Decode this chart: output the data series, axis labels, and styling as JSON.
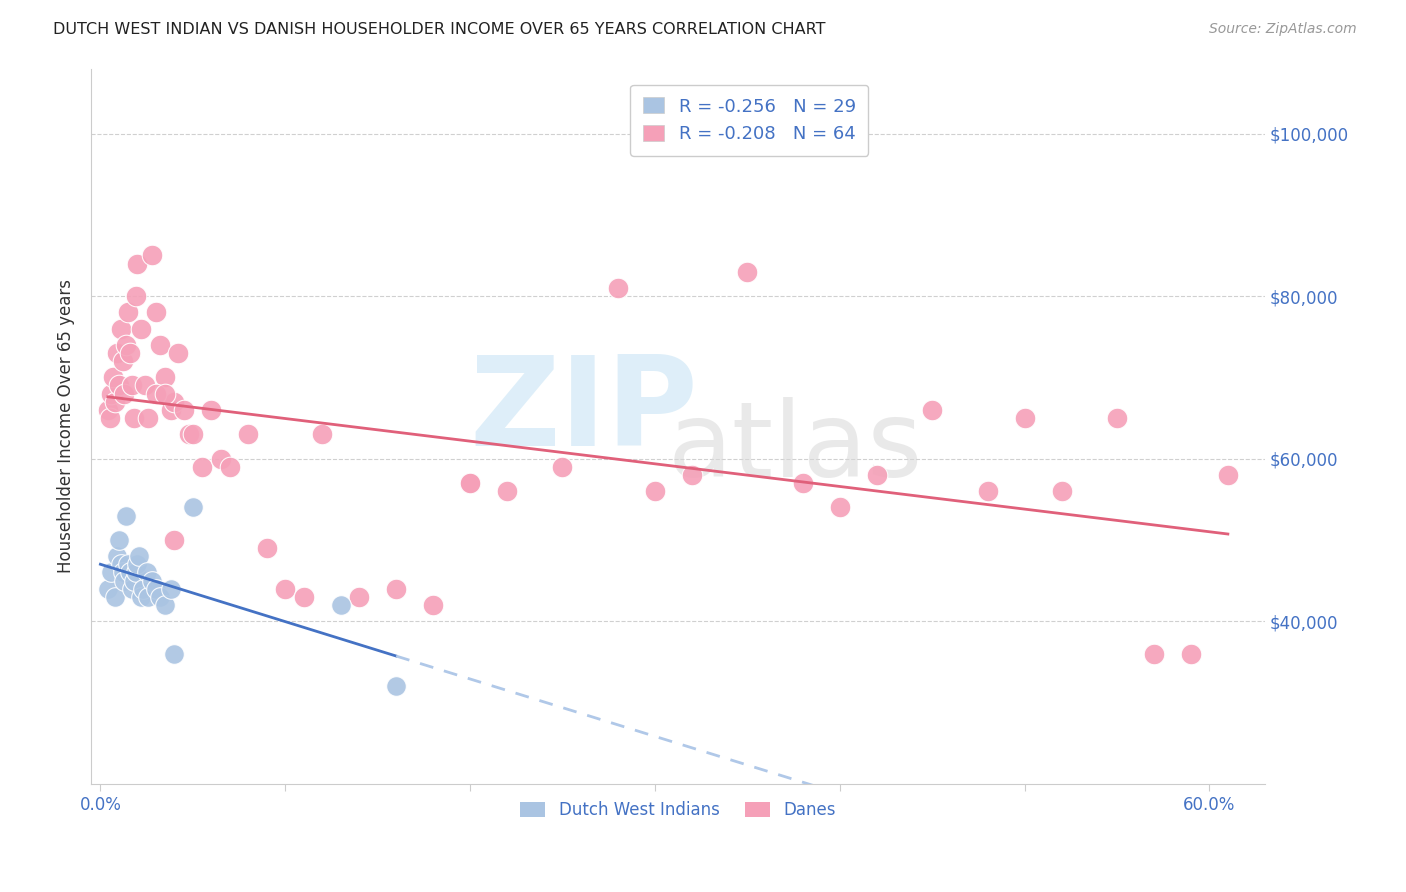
{
  "title": "DUTCH WEST INDIAN VS DANISH HOUSEHOLDER INCOME OVER 65 YEARS CORRELATION CHART",
  "source": "Source: ZipAtlas.com",
  "ylabel": "Householder Income Over 65 years",
  "ylim": [
    20000,
    108000
  ],
  "xlim": [
    -0.005,
    0.63
  ],
  "y_ticks": [
    40000,
    60000,
    80000,
    100000
  ],
  "y_tick_labels": [
    "$40,000",
    "$60,000",
    "$80,000",
    "$100,000"
  ],
  "blue_color": "#aac4e2",
  "pink_color": "#f5a0b8",
  "blue_line_color": "#4472c4",
  "pink_line_color": "#e0607a",
  "blue_dashed_color": "#b0c8e8",
  "axis_color": "#4472c4",
  "dutch_x": [
    0.004,
    0.006,
    0.008,
    0.009,
    0.01,
    0.011,
    0.012,
    0.013,
    0.014,
    0.015,
    0.016,
    0.017,
    0.018,
    0.019,
    0.02,
    0.021,
    0.022,
    0.023,
    0.025,
    0.026,
    0.028,
    0.03,
    0.032,
    0.035,
    0.038,
    0.04,
    0.05,
    0.13,
    0.16
  ],
  "dutch_y": [
    44000,
    46000,
    43000,
    48000,
    50000,
    47000,
    46000,
    45000,
    53000,
    47000,
    46000,
    44000,
    45000,
    46000,
    47000,
    48000,
    43000,
    44000,
    46000,
    43000,
    45000,
    44000,
    43000,
    42000,
    44000,
    36000,
    54000,
    42000,
    32000
  ],
  "danish_x": [
    0.004,
    0.005,
    0.006,
    0.007,
    0.008,
    0.009,
    0.01,
    0.011,
    0.012,
    0.013,
    0.014,
    0.015,
    0.016,
    0.017,
    0.018,
    0.019,
    0.02,
    0.022,
    0.024,
    0.026,
    0.028,
    0.03,
    0.032,
    0.035,
    0.038,
    0.04,
    0.042,
    0.045,
    0.048,
    0.05,
    0.055,
    0.06,
    0.065,
    0.07,
    0.08,
    0.09,
    0.1,
    0.11,
    0.12,
    0.14,
    0.16,
    0.18,
    0.2,
    0.22,
    0.25,
    0.28,
    0.3,
    0.32,
    0.35,
    0.38,
    0.4,
    0.42,
    0.45,
    0.48,
    0.5,
    0.52,
    0.55,
    0.57,
    0.59,
    0.61,
    0.03,
    0.035,
    0.2,
    0.04
  ],
  "danish_y": [
    66000,
    65000,
    68000,
    70000,
    67000,
    73000,
    69000,
    76000,
    72000,
    68000,
    74000,
    78000,
    73000,
    69000,
    65000,
    80000,
    84000,
    76000,
    69000,
    65000,
    85000,
    78000,
    74000,
    70000,
    66000,
    67000,
    73000,
    66000,
    63000,
    63000,
    59000,
    66000,
    60000,
    59000,
    63000,
    49000,
    44000,
    43000,
    63000,
    43000,
    44000,
    42000,
    57000,
    56000,
    59000,
    81000,
    56000,
    58000,
    83000,
    57000,
    54000,
    58000,
    66000,
    56000,
    65000,
    56000,
    65000,
    36000,
    36000,
    58000,
    68000,
    68000,
    57000,
    50000
  ]
}
